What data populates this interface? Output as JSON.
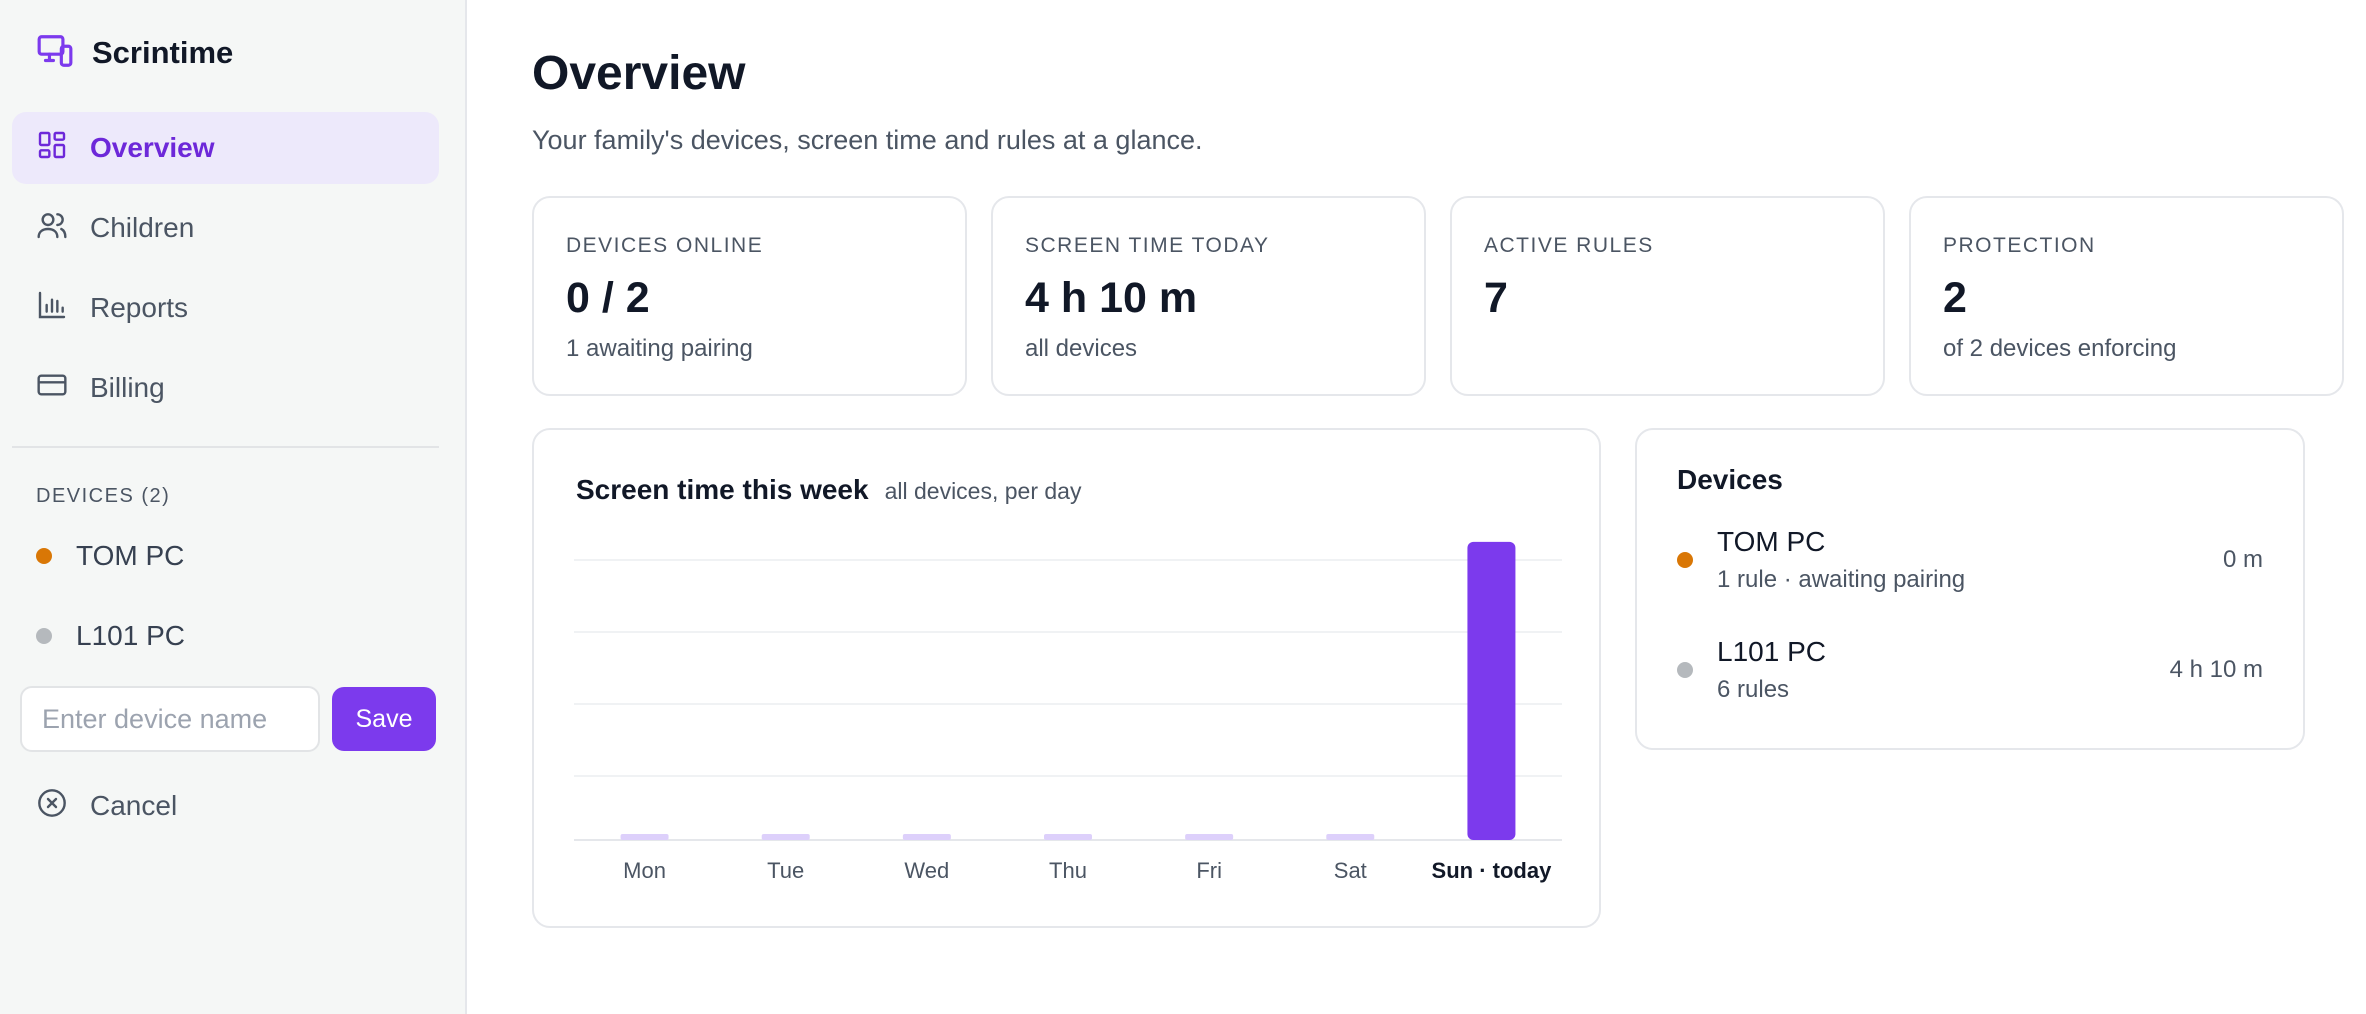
{
  "app": {
    "name": "Scrintime"
  },
  "sidebar": {
    "nav": [
      {
        "label": "Overview",
        "icon": "grid-icon",
        "active": true
      },
      {
        "label": "Children",
        "icon": "users-icon",
        "active": false
      },
      {
        "label": "Reports",
        "icon": "bar-chart-icon",
        "active": false
      },
      {
        "label": "Billing",
        "icon": "credit-card-icon",
        "active": false
      }
    ],
    "devices_label": "DEVICES (2)",
    "devices": [
      {
        "name": "TOM PC",
        "status_color": "#d97706"
      },
      {
        "name": "L101 PC",
        "status_color": "#b5b9bd"
      }
    ],
    "rename": {
      "placeholder": "Enter device name",
      "value": "",
      "save_label": "Save"
    },
    "cancel_label": "Cancel"
  },
  "main": {
    "title": "Overview",
    "subtitle": "Your family's devices, screen time and rules at a glance.",
    "stats": [
      {
        "label": "DEVICES ONLINE",
        "value": "0 / 2",
        "sub": "1 awaiting pairing"
      },
      {
        "label": "SCREEN TIME TODAY",
        "value": "4 h 10 m",
        "sub": "all devices"
      },
      {
        "label": "ACTIVE RULES",
        "value": "7",
        "sub": ""
      },
      {
        "label": "PROTECTION",
        "value": "2",
        "sub": "of 2 devices enforcing"
      }
    ],
    "chart_card": {
      "title": "Screen time this week",
      "subtitle": "all devices, per day"
    },
    "devices_card": {
      "title": "Devices",
      "items": [
        {
          "name": "TOM PC",
          "meta": "1 rule · awaiting pairing",
          "time": "0 m",
          "status_color": "#d97706"
        },
        {
          "name": "L101 PC",
          "meta": "6 rules",
          "time": "4 h 10 m",
          "status_color": "#b5b9bd"
        }
      ]
    }
  },
  "chart_data": {
    "type": "bar",
    "title": "Screen time this week",
    "subtitle": "all devices, per day",
    "categories": [
      "Mon",
      "Tue",
      "Wed",
      "Thu",
      "Fri",
      "Sat",
      "Sun · today"
    ],
    "values": [
      0,
      0,
      0,
      0,
      0,
      0,
      250
    ],
    "units": "minutes",
    "highlight_index": 6,
    "colors": {
      "bar": "#7c3aed",
      "bar_empty": "#ddd0fb"
    },
    "ylim": [
      0,
      260
    ],
    "grid": true
  },
  "colors": {
    "accent": "#7c3aed",
    "accent_bg": "#ede9fb"
  }
}
